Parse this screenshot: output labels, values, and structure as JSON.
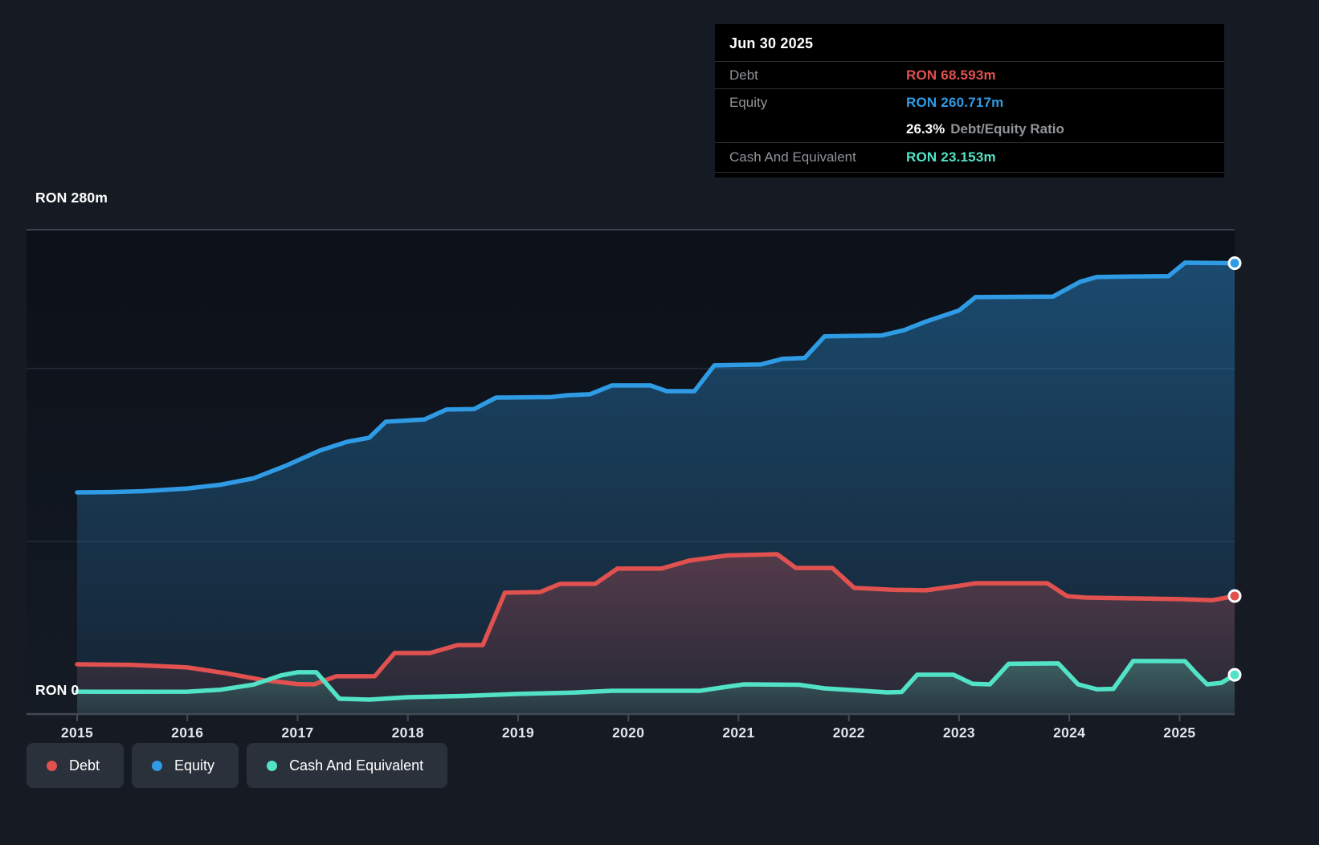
{
  "axis": {
    "y_top_label": "RON 280m",
    "y_bottom_label": "RON 0"
  },
  "tooltip": {
    "title": "Jun 30 2025",
    "debt_label": "Debt",
    "debt_value": "RON 68.593m",
    "equity_label": "Equity",
    "equity_value": "RON 260.717m",
    "ratio_value": "26.3%",
    "ratio_label": "Debt/Equity Ratio",
    "cash_label": "Cash And Equivalent",
    "cash_value": "RON 23.153m"
  },
  "legend": {
    "items": [
      {
        "label": "Debt",
        "color": "#e0514f"
      },
      {
        "label": "Equity",
        "color": "#2f9be5"
      },
      {
        "label": "Cash And Equivalent",
        "color": "#52e3c6"
      }
    ]
  },
  "colors": {
    "debt": "#e0514f",
    "equity": "#2f9be5",
    "cash": "#52e3c6",
    "page_bg": "#151a23",
    "tooltip_bg": "#000000",
    "chip_bg": "#2b313b",
    "axis_line": "#424955",
    "grid_top": "#3a414d",
    "grid_minor": "#232a35",
    "text_muted": "#909499",
    "text": "#ffffff"
  },
  "chart_data": {
    "type": "area",
    "x_range": [
      2015,
      2025.5
    ],
    "ylim": [
      0,
      280
    ],
    "unit": "RON m",
    "grid": "on",
    "legend_position": "bottom-left",
    "y_gridlines": [
      280,
      200,
      100
    ],
    "x_tick_labels": [
      "2015",
      "2016",
      "2017",
      "2018",
      "2019",
      "2020",
      "2021",
      "2022",
      "2023",
      "2024",
      "2025"
    ],
    "series": [
      {
        "name": "Debt",
        "color": "#e0514f",
        "final_label": "RON 68.593m",
        "points": [
          [
            2015.0,
            29.2
          ],
          [
            2015.5,
            28.9
          ],
          [
            2016.0,
            27.4
          ],
          [
            2016.35,
            24.0
          ],
          [
            2016.7,
            20.0
          ],
          [
            2017.0,
            17.8
          ],
          [
            2017.15,
            17.6
          ],
          [
            2017.35,
            22.3
          ],
          [
            2017.7,
            22.3
          ],
          [
            2017.88,
            35.7
          ],
          [
            2018.2,
            35.7
          ],
          [
            2018.45,
            40.3
          ],
          [
            2018.68,
            40.3
          ],
          [
            2018.88,
            70.5
          ],
          [
            2019.2,
            70.9
          ],
          [
            2019.38,
            75.6
          ],
          [
            2019.7,
            75.6
          ],
          [
            2019.9,
            84.4
          ],
          [
            2020.3,
            84.4
          ],
          [
            2020.55,
            89.0
          ],
          [
            2020.9,
            92.0
          ],
          [
            2021.35,
            92.7
          ],
          [
            2021.52,
            84.8
          ],
          [
            2021.85,
            84.8
          ],
          [
            2022.05,
            73.3
          ],
          [
            2022.4,
            72.2
          ],
          [
            2022.7,
            71.9
          ],
          [
            2023.0,
            74.5
          ],
          [
            2023.15,
            76.0
          ],
          [
            2023.8,
            76.0
          ],
          [
            2023.98,
            68.5
          ],
          [
            2024.15,
            67.7
          ],
          [
            2024.6,
            67.2
          ],
          [
            2025.0,
            66.8
          ],
          [
            2025.3,
            66.2
          ],
          [
            2025.5,
            68.593
          ]
        ]
      },
      {
        "name": "Equity",
        "color": "#2f9be5",
        "final_label": "RON 260.717m",
        "points": [
          [
            2015.0,
            128.4
          ],
          [
            2015.3,
            128.6
          ],
          [
            2015.6,
            129.1
          ],
          [
            2016.0,
            130.7
          ],
          [
            2016.3,
            132.8
          ],
          [
            2016.6,
            136.5
          ],
          [
            2016.9,
            144.0
          ],
          [
            2017.2,
            152.5
          ],
          [
            2017.45,
            157.6
          ],
          [
            2017.65,
            160.0
          ],
          [
            2017.8,
            169.2
          ],
          [
            2018.15,
            170.5
          ],
          [
            2018.35,
            176.2
          ],
          [
            2018.6,
            176.5
          ],
          [
            2018.8,
            183.1
          ],
          [
            2019.3,
            183.4
          ],
          [
            2019.45,
            184.5
          ],
          [
            2019.65,
            185.0
          ],
          [
            2019.85,
            190.1
          ],
          [
            2020.2,
            190.1
          ],
          [
            2020.35,
            186.8
          ],
          [
            2020.6,
            186.8
          ],
          [
            2020.78,
            201.7
          ],
          [
            2021.2,
            202.2
          ],
          [
            2021.4,
            205.5
          ],
          [
            2021.6,
            206.0
          ],
          [
            2021.78,
            218.5
          ],
          [
            2022.3,
            219.0
          ],
          [
            2022.5,
            222.0
          ],
          [
            2022.7,
            227.0
          ],
          [
            2023.0,
            233.4
          ],
          [
            2023.15,
            241.1
          ],
          [
            2023.85,
            241.4
          ],
          [
            2024.1,
            250.0
          ],
          [
            2024.25,
            252.7
          ],
          [
            2024.55,
            253.0
          ],
          [
            2024.9,
            253.2
          ],
          [
            2025.05,
            261.0
          ],
          [
            2025.5,
            260.717
          ]
        ]
      },
      {
        "name": "Cash And Equivalent",
        "color": "#52e3c6",
        "final_label": "RON 23.153m",
        "points": [
          [
            2015.0,
            13.4
          ],
          [
            2015.5,
            13.3
          ],
          [
            2016.0,
            13.4
          ],
          [
            2016.3,
            14.5
          ],
          [
            2016.6,
            17.5
          ],
          [
            2016.85,
            22.8
          ],
          [
            2017.0,
            24.6
          ],
          [
            2017.17,
            24.6
          ],
          [
            2017.38,
            9.3
          ],
          [
            2017.65,
            8.8
          ],
          [
            2018.0,
            10.2
          ],
          [
            2018.5,
            10.9
          ],
          [
            2019.0,
            12.1
          ],
          [
            2019.5,
            12.9
          ],
          [
            2019.85,
            13.9
          ],
          [
            2020.65,
            13.9
          ],
          [
            2020.85,
            15.8
          ],
          [
            2021.05,
            17.6
          ],
          [
            2021.55,
            17.4
          ],
          [
            2021.78,
            15.3
          ],
          [
            2022.1,
            14.0
          ],
          [
            2022.35,
            13.0
          ],
          [
            2022.48,
            13.2
          ],
          [
            2022.62,
            23.2
          ],
          [
            2022.95,
            23.2
          ],
          [
            2023.12,
            18.0
          ],
          [
            2023.28,
            17.6
          ],
          [
            2023.45,
            29.5
          ],
          [
            2023.9,
            29.7
          ],
          [
            2024.08,
            17.6
          ],
          [
            2024.25,
            14.8
          ],
          [
            2024.4,
            15.0
          ],
          [
            2024.58,
            31.1
          ],
          [
            2025.05,
            31.0
          ],
          [
            2025.15,
            24.0
          ],
          [
            2025.25,
            17.6
          ],
          [
            2025.38,
            18.5
          ],
          [
            2025.5,
            23.153
          ]
        ]
      }
    ]
  }
}
